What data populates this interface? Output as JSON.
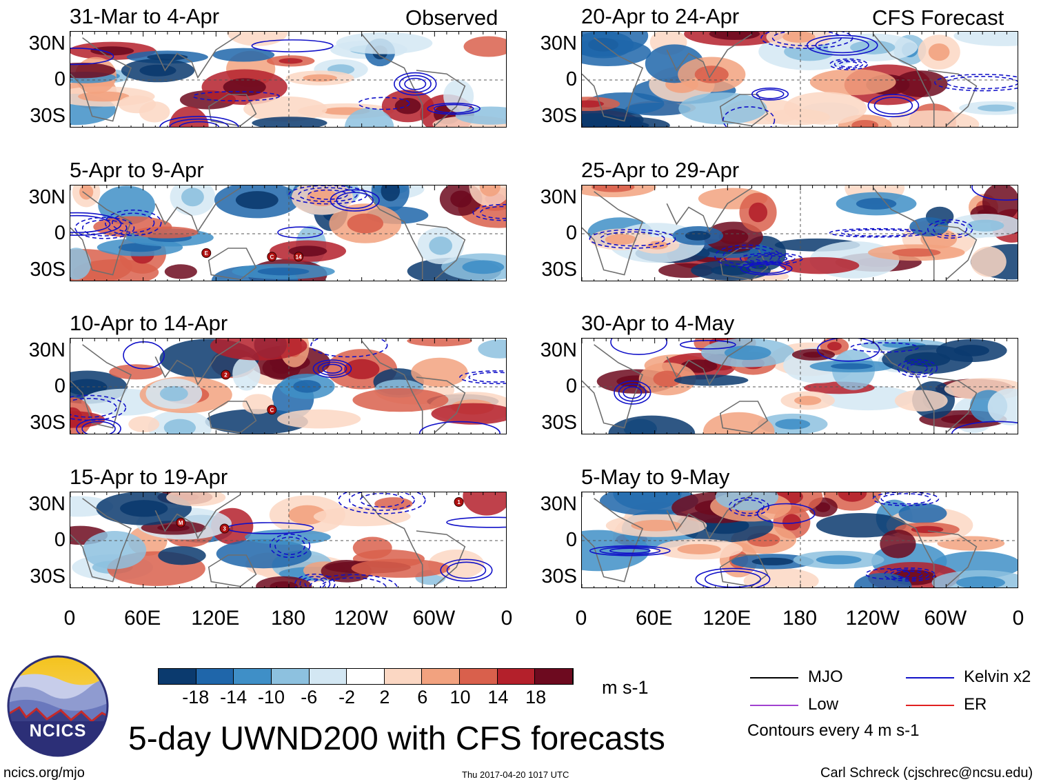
{
  "chart_data": {
    "type": "heatmap",
    "variable": "UWND200",
    "units": "m s-1",
    "title": "5-day UWND200 with CFS forecasts",
    "columns": [
      {
        "name": "observed",
        "header": "Observed",
        "panels": [
          {
            "title": "31-Mar to 4-Apr",
            "storms": []
          },
          {
            "title": "5-Apr to 9-Apr",
            "storms": [
              {
                "label": "E",
                "lon": 112,
                "lat": -16
              },
              {
                "label": "C",
                "lon": 166,
                "lat": -19
              },
              {
                "label": "14",
                "lon": 188,
                "lat": -19
              }
            ]
          },
          {
            "title": "10-Apr to 14-Apr",
            "storms": [
              {
                "label": "2",
                "lon": 128,
                "lat": 10
              },
              {
                "label": "C",
                "lon": 166,
                "lat": -19
              }
            ]
          },
          {
            "title": "15-Apr to 19-Apr",
            "storms": [
              {
                "label": "M",
                "lon": 91,
                "lat": 15
              },
              {
                "label": "3",
                "lon": 127,
                "lat": 10
              },
              {
                "label": "1",
                "lon": 320,
                "lat": 32
              }
            ]
          }
        ]
      },
      {
        "name": "forecast",
        "header": "CFS Forecast",
        "panels": [
          {
            "title": "20-Apr to 24-Apr",
            "storms": []
          },
          {
            "title": "25-Apr to 29-Apr",
            "storms": []
          },
          {
            "title": "30-Apr to 4-May",
            "storms": []
          },
          {
            "title": "5-May to 9-May",
            "storms": []
          }
        ]
      }
    ],
    "x_ticks": [
      "0",
      "60E",
      "120E",
      "180",
      "120W",
      "60W",
      "0"
    ],
    "x_tick_lons": [
      0,
      60,
      120,
      180,
      240,
      300,
      360
    ],
    "y_ticks": [
      "30N",
      "0",
      "30S"
    ],
    "y_tick_lats": [
      30,
      0,
      -30
    ],
    "xlim": [
      0,
      360
    ],
    "ylim": [
      -40,
      40
    ],
    "colorbar": {
      "levels": [
        "-18",
        "-14",
        "-10",
        "-6",
        "-2",
        "2",
        "6",
        "10",
        "14",
        "18"
      ],
      "colors": [
        "#0b3a6e",
        "#1f66aa",
        "#3f8fc7",
        "#8dc1df",
        "#d3e7f3",
        "#ffffff",
        "#fbd7c3",
        "#f2a27f",
        "#d9604c",
        "#b4202b",
        "#6d0a1f"
      ],
      "units": "m s-1"
    },
    "contour_legend": {
      "entries": [
        {
          "label": "MJO",
          "color": "#000000"
        },
        {
          "label": "Kelvin x2",
          "color": "#1010c8"
        },
        {
          "label": "Low",
          "color": "#a040d0"
        },
        {
          "label": "ER",
          "color": "#e02020"
        }
      ],
      "note": "Contours every 4 m s-1"
    }
  },
  "footer": {
    "left": "ncics.org/mjo",
    "center": "Thu 2017-04-20 1017 UTC",
    "right": "Carl Schreck (cjschrec@ncsu.edu)"
  },
  "logo": {
    "text": "NCICS"
  }
}
